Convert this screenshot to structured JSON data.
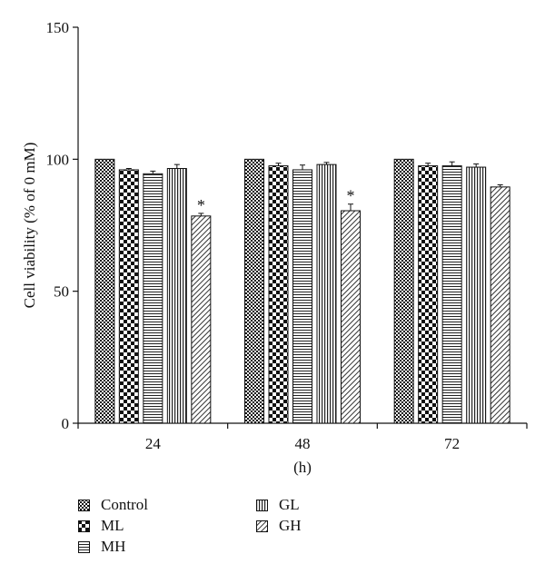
{
  "chart_data": {
    "type": "bar",
    "ylabel": "Cell viability (% of 0 mM)",
    "xlabel": "(h)",
    "ylim": [
      0,
      150
    ],
    "yticks": [
      "0",
      "50",
      "100",
      "150"
    ],
    "categories": [
      "24",
      "48",
      "72"
    ],
    "series": [
      {
        "name": "Control",
        "pattern": "check-fine",
        "values": [
          100,
          100,
          100
        ],
        "errors": [
          0,
          0,
          0
        ]
      },
      {
        "name": "ML",
        "pattern": "check-coarse",
        "values": [
          96,
          97.5,
          97.5
        ],
        "errors": [
          0.5,
          1,
          1
        ]
      },
      {
        "name": "MH",
        "pattern": "horizontal",
        "values": [
          94.5,
          96,
          97.5
        ],
        "errors": [
          1,
          1.8,
          1.5
        ]
      },
      {
        "name": "GL",
        "pattern": "vertical",
        "values": [
          96.5,
          98,
          97
        ],
        "errors": [
          1.5,
          0.8,
          1.2
        ]
      },
      {
        "name": "GH",
        "pattern": "diagonal",
        "values": [
          78.5,
          80.5,
          89.5
        ],
        "errors": [
          1,
          2.5,
          0.8
        ]
      }
    ],
    "annotations": [
      {
        "series": "GH",
        "category": "24",
        "text": "*"
      },
      {
        "series": "GH",
        "category": "48",
        "text": "*"
      }
    ],
    "grid": false,
    "legend_position": "bottom-left"
  }
}
